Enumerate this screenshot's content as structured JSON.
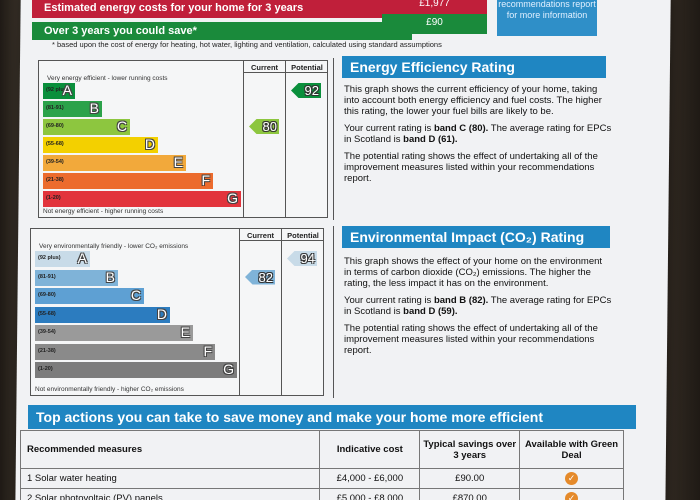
{
  "header": {
    "estimated_costs": "Estimated energy costs for your home for 3 years",
    "estimated_costs_value": "£1,977",
    "over_3_years": "Over 3 years you could save*",
    "save_value": "£90",
    "side_note": "recommendations report for more information",
    "footnote": "* based upon the cost of energy for heating, hot water, lighting and ventilation, calculated using standard assumptions"
  },
  "energy_chart": {
    "col_current": "Current",
    "col_potential": "Potential",
    "top_label": "Very energy efficient - lower running costs",
    "bottom_label": "Not energy efficient - higher running costs",
    "bands": [
      {
        "range": "(92 plus)",
        "letter": "A",
        "color": "#0a8f3c",
        "level": 0.16
      },
      {
        "range": "(81-91)",
        "letter": "B",
        "color": "#2ba24a",
        "level": 0.3
      },
      {
        "range": "(69-80)",
        "letter": "C",
        "color": "#8dc63f",
        "level": 0.44
      },
      {
        "range": "(55-68)",
        "letter": "D",
        "color": "#f3d000",
        "level": 0.58
      },
      {
        "range": "(39-54)",
        "letter": "E",
        "color": "#f2a93b",
        "level": 0.72
      },
      {
        "range": "(21-38)",
        "letter": "F",
        "color": "#ec6b2d",
        "level": 0.86
      },
      {
        "range": "(1-20)",
        "letter": "G",
        "color": "#e2343c",
        "level": 1.0
      }
    ],
    "current": "80",
    "current_color": "#8dc63f",
    "potential": "92",
    "potential_color": "#0a8f3c"
  },
  "energy_panel": {
    "title": "Energy Efficiency Rating",
    "p1": "This graph shows the current efficiency of your home, taking into account both energy efficiency and fuel costs. The higher this rating, the lower your fuel bills are likely to be.",
    "p2a": "Your current rating is ",
    "p2b": "band C (80).",
    "p2c": " The average rating for EPCs in Scotland is ",
    "p2d": "band D (61).",
    "p3": "The potential rating shows the effect of undertaking all of the improvement measures listed within your recommendations report."
  },
  "env_chart": {
    "col_current": "Current",
    "col_potential": "Potential",
    "top_label": "Very environmentally friendly - lower CO₂ emissions",
    "bottom_label": "Not environmentally friendly - higher CO₂ emissions",
    "bands": [
      {
        "range": "(92 plus)",
        "letter": "A",
        "color": "#c8dbe8",
        "level": 0.27
      },
      {
        "range": "(81-91)",
        "letter": "B",
        "color": "#7fb3d8",
        "level": 0.41
      },
      {
        "range": "(69-80)",
        "letter": "C",
        "color": "#5ea0d3",
        "level": 0.54
      },
      {
        "range": "(55-68)",
        "letter": "D",
        "color": "#2c7cbf",
        "level": 0.67
      },
      {
        "range": "(39-54)",
        "letter": "E",
        "color": "#9a9a9a",
        "level": 0.78
      },
      {
        "range": "(21-38)",
        "letter": "F",
        "color": "#8a8a8a",
        "level": 0.89
      },
      {
        "range": "(1-20)",
        "letter": "G",
        "color": "#7c7c7c",
        "level": 1.0
      }
    ],
    "current": "82",
    "current_color": "#7fb3d8",
    "potential": "94",
    "potential_color": "#c8dbe8"
  },
  "env_panel": {
    "title": "Environmental Impact (CO₂) Rating",
    "p1": "This graph shows the effect of your home on the environment in terms of carbon dioxide (CO₂) emissions. The higher the rating, the less impact it has on the environment.",
    "p2a": "Your current rating is ",
    "p2b": "band B (82).",
    "p2c": " The average rating for EPCs in Scotland is ",
    "p2d": "band D (59).",
    "p3": "The potential rating shows the effect of undertaking all of the improvement measures listed within your recommendations report."
  },
  "actions": {
    "title": "Top actions you can take to save money and make your home more efficient",
    "headers": [
      "Recommended measures",
      "Indicative cost",
      "Typical savings over 3 years",
      "Available with Green Deal"
    ],
    "rows": [
      {
        "measure": "1 Solar water heating",
        "cost": "£4,000 - £6,000",
        "savings": "£90.00",
        "icon": "check-icon"
      },
      {
        "measure": "2 Solar photovoltaic (PV) panels",
        "cost": "£5,000 - £8,000",
        "savings": "£870.00",
        "icon": "check-icon"
      }
    ]
  }
}
